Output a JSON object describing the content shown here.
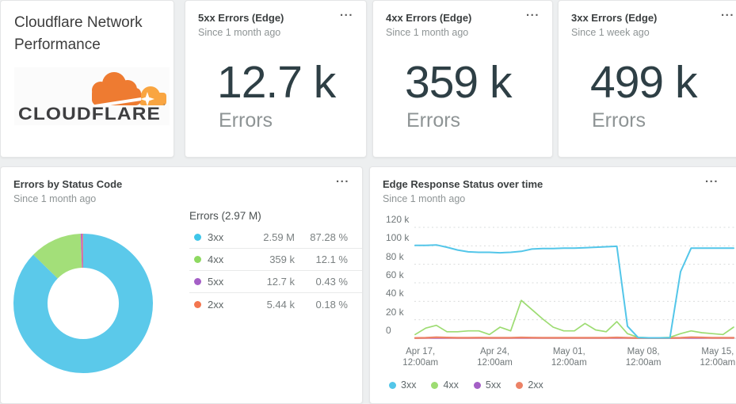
{
  "header_card": {
    "title_line1": "Cloudflare Network",
    "title_line2": "Performance",
    "logo_text": "CLOUDFLARE",
    "logo_mark": "’",
    "logo_colors": {
      "cloud": "#ee7b31",
      "cloud_light": "#f9a541",
      "text": "#3e3e40"
    }
  },
  "kpi_cards": [
    {
      "title": "5xx Errors (Edge)",
      "subtitle": "Since 1 month ago",
      "value": "12.7 k",
      "unit": "Errors",
      "menu": "..."
    },
    {
      "title": "4xx Errors (Edge)",
      "subtitle": "Since 1 month ago",
      "value": "359 k",
      "unit": "Errors",
      "menu": "..."
    },
    {
      "title": "3xx Errors (Edge)",
      "subtitle": "Since 1 week ago",
      "value": "499 k",
      "unit": "Errors",
      "menu": "..."
    }
  ],
  "donut_card": {
    "title": "Errors by Status Code",
    "subtitle": "Since 1 month ago",
    "menu": "..."
  },
  "line_card": {
    "title": "Edge Response Status over time",
    "subtitle": "Since 1 month ago",
    "menu": "..."
  },
  "chart_data": [
    {
      "type": "pie",
      "donut": true,
      "title": "Errors by Status Code",
      "table_header": "Errors (2.97 M)",
      "total_label": "2.97 M",
      "slices": [
        {
          "label": "3xx",
          "value": 2590000,
          "value_label": "2.59 M",
          "pct": 87.28,
          "pct_label": "87.28 %",
          "dot_color": "#3fc6e9",
          "fill": "#5bc9ea"
        },
        {
          "label": "4xx",
          "value": 359000,
          "value_label": "359 k",
          "pct": 12.1,
          "pct_label": "12.1 %",
          "dot_color": "#8ed961",
          "fill": "#a3df79"
        },
        {
          "label": "5xx",
          "value": 12700,
          "value_label": "12.7 k",
          "pct": 0.43,
          "pct_label": "0.43 %",
          "dot_color": "#a45fc6",
          "fill": "#c168c4"
        },
        {
          "label": "2xx",
          "value": 5440,
          "value_label": "5.44 k",
          "pct": 0.18,
          "pct_label": "0.18 %",
          "dot_color": "#f3764f",
          "fill": "#f0825e"
        }
      ]
    },
    {
      "type": "line",
      "title": "Edge Response Status over time",
      "y_ticks": [
        "120 k",
        "100 k",
        "80 k",
        "60 k",
        "40 k",
        "20 k",
        "0"
      ],
      "y_tick_values_k": [
        120,
        100,
        80,
        60,
        40,
        20,
        0
      ],
      "ylim_k": [
        0,
        120
      ],
      "unit": "errors per day (thousands)",
      "grid": "horizontal dotted",
      "legend_position": "bottom-left",
      "x_tick_labels": [
        [
          "Apr 17,",
          "12:00am"
        ],
        [
          "Apr 24,",
          "12:00am"
        ],
        [
          "May 01,",
          "12:00am"
        ],
        [
          "May 08,",
          "12:00am"
        ],
        [
          "May 15,",
          "12:00am"
        ]
      ],
      "x_tick_indices": [
        0.5,
        7.5,
        14.5,
        21.5,
        28.5
      ],
      "series": [
        {
          "name": "3xx",
          "color": "#53c6e9",
          "width": 2,
          "values_k": [
            100.5,
            100.5,
            101,
            98.5,
            95.5,
            93.5,
            93,
            93,
            92.5,
            93,
            94,
            96.5,
            97,
            97,
            97.5,
            97.5,
            98,
            98.5,
            99,
            99.5,
            13,
            0.8,
            0.4,
            0.4,
            0.4,
            72,
            97.5,
            97.5,
            97.5,
            97.5,
            97.5
          ]
        },
        {
          "name": "4xx",
          "color": "#9ddc72",
          "width": 1.7,
          "values_k": [
            4,
            11,
            14,
            7,
            7,
            8,
            8,
            4,
            12,
            8,
            41,
            31,
            21,
            12,
            8,
            8,
            16,
            9,
            7,
            18,
            5,
            1,
            0.5,
            0.5,
            1,
            5,
            8,
            6,
            5,
            4,
            12
          ]
        },
        {
          "name": "5xx",
          "color": "#a45fc6",
          "width": 1.5,
          "values_k": [
            0,
            0,
            0,
            0,
            0,
            0,
            0,
            0,
            0,
            0,
            0,
            0,
            0,
            0,
            0,
            0,
            0,
            0,
            0,
            0,
            0,
            0,
            0,
            0,
            0,
            0,
            0,
            0,
            0,
            0,
            0
          ]
        },
        {
          "name": "2xx",
          "color": "#ec8266",
          "width": 2.4,
          "values_k": [
            0.3,
            0.5,
            1,
            0.7,
            0.5,
            0.5,
            0.6,
            0.5,
            0.5,
            0.5,
            0.8,
            0.6,
            0.5,
            0.5,
            0.5,
            0.5,
            0.5,
            0.5,
            0.5,
            0.8,
            0.5,
            0.3,
            0.3,
            0.3,
            0.3,
            0.5,
            1,
            0.8,
            0.5,
            0.5,
            0.5
          ]
        }
      ],
      "draw_order": [
        2,
        3,
        1,
        0
      ],
      "legend": [
        "3xx",
        "4xx",
        "5xx",
        "2xx"
      ]
    }
  ]
}
